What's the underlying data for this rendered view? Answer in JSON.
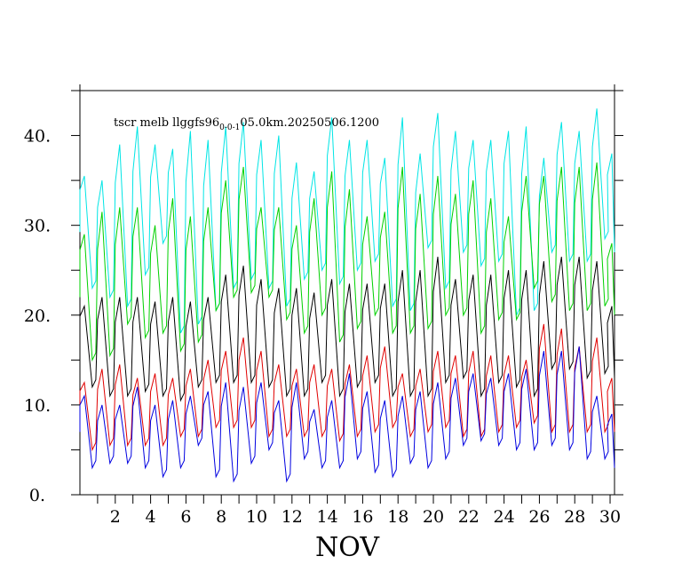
{
  "chart_data": {
    "type": "line",
    "title": "tscr melb llggfs96",
    "title_subscript": "0-0-1",
    "title_suffix": "05.0km.20250506.1200",
    "xlabel": "NOV",
    "ylabel": "",
    "xlim": [
      0.0,
      30.25
    ],
    "ylim": [
      0,
      45
    ],
    "x_ticks": [
      2,
      4,
      6,
      8,
      10,
      12,
      14,
      16,
      18,
      20,
      22,
      24,
      26,
      28,
      30
    ],
    "x_tick_labels": [
      "2",
      "4",
      "6",
      "8",
      "10",
      "12",
      "14",
      "16",
      "18",
      "20",
      "22",
      "24",
      "26",
      "28",
      "30"
    ],
    "y_ticks": [
      0,
      10,
      20,
      30,
      40
    ],
    "y_tick_labels": [
      "0.",
      "10.",
      "20.",
      "30.",
      "40."
    ],
    "grid": false,
    "series": [
      {
        "color": "#00e5e5",
        "amplitude": 6.5,
        "x_peak": [
          0.25,
          1.25,
          2.25,
          3.25,
          4.25,
          5.25,
          6.25,
          7.25,
          8.25,
          9.25,
          10.25,
          11.25,
          12.25,
          13.25,
          14.25,
          15.25,
          16.25,
          17.25,
          18.25,
          19.25,
          20.25,
          21.25,
          22.25,
          23.25,
          24.25,
          25.25,
          26.25,
          27.25,
          28.25,
          29.25,
          30.1
        ],
        "peaks": [
          35.5,
          35.0,
          39.0,
          41.0,
          39.0,
          38.5,
          40.5,
          39.5,
          41.0,
          41.5,
          39.5,
          40.0,
          37.0,
          36.0,
          42.0,
          39.5,
          39.5,
          37.5,
          42.0,
          38.0,
          42.5,
          40.5,
          39.5,
          39.5,
          40.5,
          41.0,
          37.5,
          41.5,
          40.5,
          43.0,
          38.0
        ],
        "troughs": [
          23.0,
          22.0,
          21.0,
          24.5,
          28.0,
          18.0,
          19.0,
          20.5,
          23.0,
          24.0,
          23.0,
          21.0,
          24.0,
          25.0,
          23.5,
          25.0,
          26.0,
          21.0,
          20.5,
          27.5,
          23.0,
          27.0,
          25.5,
          26.0,
          20.0,
          20.5,
          27.0,
          26.0,
          26.0,
          28.5,
          27.0
        ]
      },
      {
        "color": "#00d000",
        "amplitude": 6.0,
        "x_peak": [
          0.25,
          1.25,
          2.25,
          3.25,
          4.25,
          5.25,
          6.25,
          7.25,
          8.25,
          9.25,
          10.25,
          11.25,
          12.25,
          13.25,
          14.25,
          15.25,
          16.25,
          17.25,
          18.25,
          19.25,
          20.25,
          21.25,
          22.25,
          23.25,
          24.25,
          25.25,
          26.25,
          27.25,
          28.25,
          29.25,
          30.1
        ],
        "peaks": [
          29.0,
          31.5,
          32.0,
          32.0,
          30.0,
          33.0,
          31.0,
          32.0,
          35.0,
          36.5,
          32.0,
          32.0,
          30.0,
          33.0,
          36.0,
          34.0,
          31.0,
          31.5,
          36.5,
          33.5,
          35.5,
          33.5,
          35.0,
          33.0,
          31.0,
          35.5,
          35.5,
          36.5,
          36.5,
          37.0,
          28.0
        ],
        "troughs": [
          15.0,
          15.5,
          19.0,
          17.5,
          18.0,
          16.0,
          17.0,
          20.5,
          22.0,
          22.5,
          22.0,
          19.5,
          18.0,
          20.0,
          17.0,
          18.5,
          20.0,
          18.0,
          18.0,
          18.5,
          20.0,
          20.0,
          18.0,
          19.5,
          19.5,
          23.0,
          21.5,
          20.5,
          20.5,
          21.0,
          20.0
        ]
      },
      {
        "color": "#000000",
        "amplitude": 6.0,
        "x_peak": [
          0.25,
          1.25,
          2.25,
          3.25,
          4.25,
          5.25,
          6.25,
          7.25,
          8.25,
          9.25,
          10.25,
          11.25,
          12.25,
          13.25,
          14.25,
          15.25,
          16.25,
          17.25,
          18.25,
          19.25,
          20.25,
          21.25,
          22.25,
          23.25,
          24.25,
          25.25,
          26.25,
          27.25,
          28.25,
          29.25,
          30.1
        ],
        "peaks": [
          21.0,
          22.0,
          22.0,
          22.0,
          21.5,
          22.0,
          21.5,
          22.0,
          24.5,
          25.5,
          24.0,
          23.0,
          23.0,
          22.5,
          24.0,
          23.5,
          23.5,
          23.5,
          25.0,
          25.0,
          26.5,
          24.0,
          24.5,
          24.5,
          25.0,
          25.0,
          26.0,
          26.5,
          26.5,
          26.0,
          21.0
        ],
        "troughs": [
          12.0,
          11.0,
          11.0,
          11.5,
          11.0,
          10.5,
          12.0,
          12.5,
          12.5,
          12.5,
          12.0,
          11.0,
          11.0,
          12.5,
          11.0,
          12.0,
          12.5,
          11.0,
          11.0,
          11.0,
          12.5,
          13.0,
          11.0,
          12.5,
          12.0,
          11.0,
          14.0,
          14.0,
          13.0,
          13.5,
          13.0
        ]
      },
      {
        "color": "#e00000",
        "amplitude": 4.0,
        "x_peak": [
          0.25,
          1.25,
          2.25,
          3.25,
          4.25,
          5.25,
          6.25,
          7.25,
          8.25,
          9.25,
          10.25,
          11.25,
          12.25,
          13.25,
          14.25,
          15.25,
          16.25,
          17.25,
          18.25,
          19.25,
          20.25,
          21.25,
          22.25,
          23.25,
          24.25,
          25.25,
          26.25,
          27.25,
          28.25,
          29.25,
          30.1
        ],
        "peaks": [
          12.5,
          14.0,
          14.5,
          13.0,
          13.5,
          13.0,
          14.0,
          15.0,
          16.0,
          17.5,
          16.0,
          14.5,
          14.0,
          14.5,
          14.0,
          14.5,
          15.5,
          16.5,
          13.5,
          14.0,
          16.0,
          15.5,
          16.0,
          15.5,
          15.5,
          15.0,
          19.0,
          18.5,
          16.5,
          17.5,
          13.0
        ],
        "troughs": [
          5.0,
          5.5,
          5.5,
          5.5,
          5.5,
          6.5,
          6.5,
          7.5,
          7.5,
          7.5,
          6.5,
          6.5,
          6.5,
          6.5,
          6.0,
          6.5,
          7.0,
          7.5,
          6.5,
          7.0,
          7.5,
          6.5,
          6.5,
          7.0,
          7.5,
          8.0,
          7.0,
          7.0,
          7.0,
          7.0,
          7.0
        ]
      },
      {
        "color": "#0000e0",
        "amplitude": 5.0,
        "x_peak": [
          0.25,
          1.25,
          2.25,
          3.25,
          4.25,
          5.25,
          6.25,
          7.25,
          8.25,
          9.25,
          10.25,
          11.25,
          12.25,
          13.25,
          14.25,
          15.25,
          16.25,
          17.25,
          18.25,
          19.25,
          20.25,
          21.25,
          22.25,
          23.25,
          24.25,
          25.25,
          26.25,
          27.25,
          28.25,
          29.25,
          30.1
        ],
        "peaks": [
          11.0,
          10.0,
          10.0,
          12.0,
          10.0,
          10.5,
          11.0,
          11.5,
          12.5,
          12.0,
          12.5,
          10.5,
          12.5,
          9.5,
          10.5,
          13.5,
          11.5,
          10.5,
          11.0,
          11.5,
          12.5,
          13.0,
          13.5,
          13.0,
          13.5,
          14.0,
          16.0,
          16.0,
          16.5,
          11.0,
          9.0
        ],
        "troughs": [
          3.0,
          3.5,
          3.5,
          3.0,
          2.0,
          3.0,
          5.5,
          2.0,
          1.5,
          3.5,
          5.0,
          1.5,
          4.0,
          3.0,
          3.0,
          4.0,
          2.5,
          2.0,
          3.5,
          3.0,
          4.0,
          5.5,
          6.0,
          5.5,
          5.0,
          5.0,
          5.5,
          5.0,
          4.0,
          4.0,
          3.0
        ]
      }
    ]
  }
}
